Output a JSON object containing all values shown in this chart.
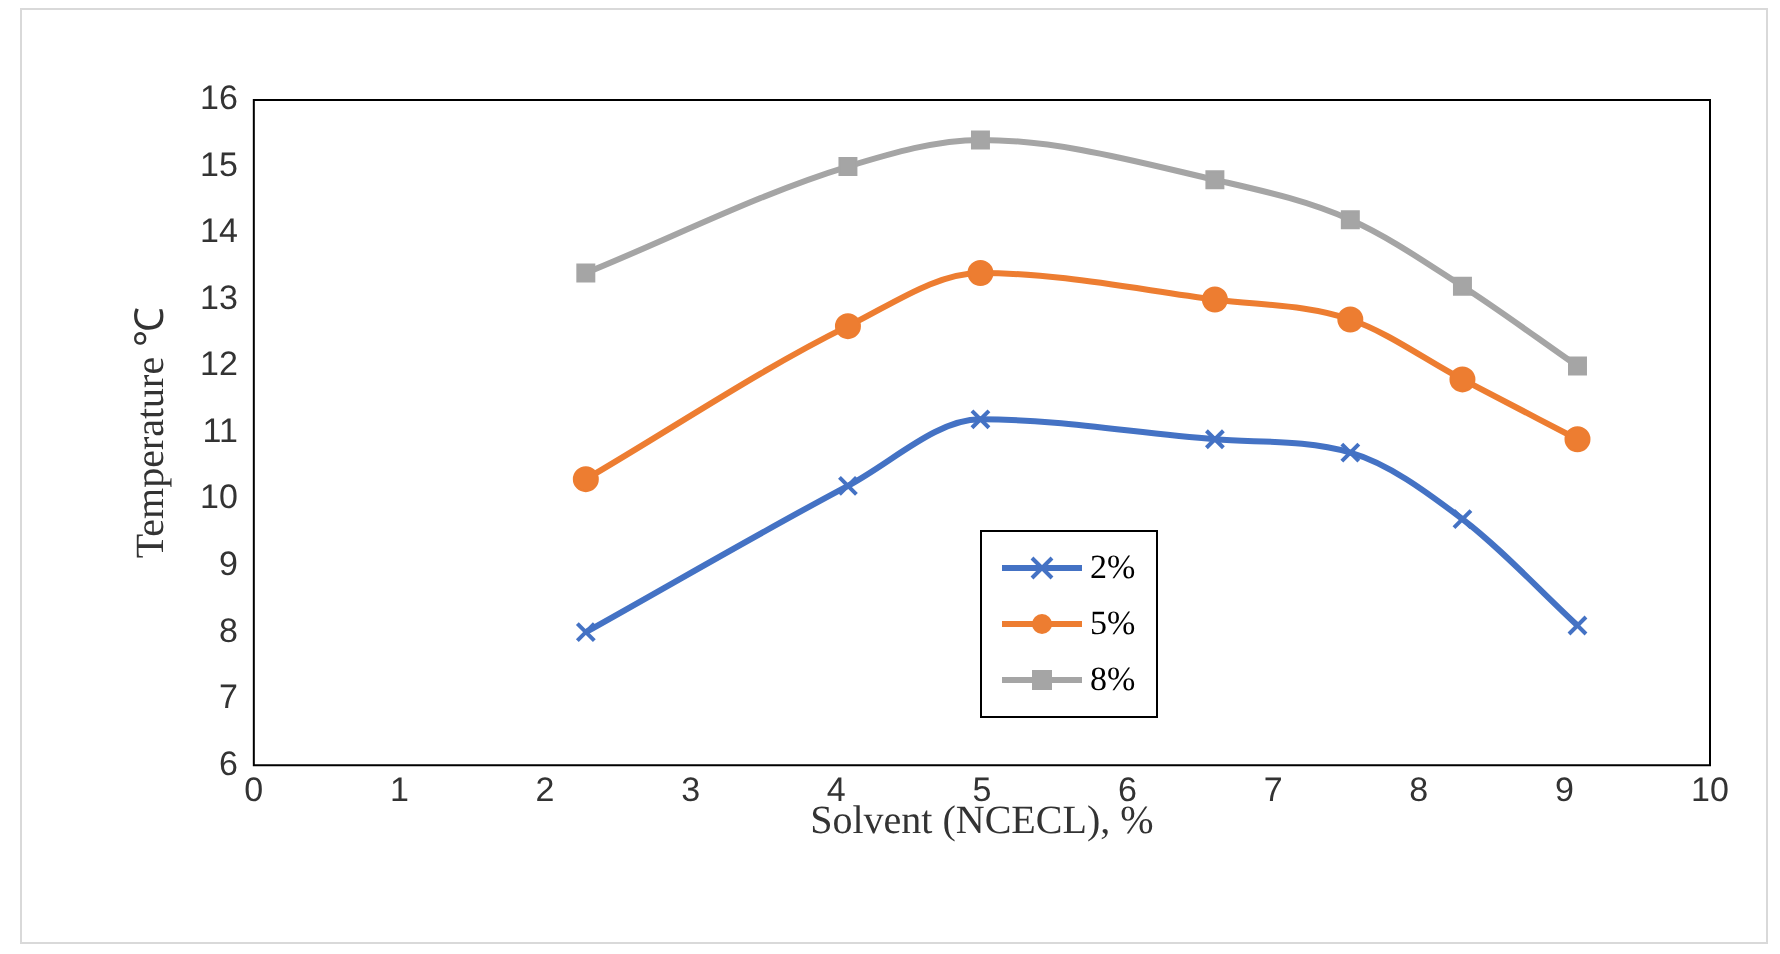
{
  "chart_data": {
    "type": "line",
    "xlabel": "Solvent (NCECL), %",
    "ylabel": "Temperature ℃",
    "xlim": [
      0,
      10
    ],
    "xticks": [
      0,
      1,
      2,
      3,
      4,
      5,
      6,
      7,
      8,
      9,
      10
    ],
    "ylim": [
      6,
      16
    ],
    "yticks": [
      6,
      7,
      8,
      9,
      10,
      11,
      12,
      13,
      14,
      15,
      16
    ],
    "grid": false,
    "legend": "bottom",
    "series": [
      {
        "name": "2%",
        "color": "#4472c4",
        "marker": "cross",
        "x": [
          2.28,
          4.08,
          4.99,
          6.6,
          7.53,
          8.3,
          9.09
        ],
        "values": [
          8.0,
          10.2,
          11.2,
          10.9,
          10.7,
          9.7,
          8.1
        ]
      },
      {
        "name": "5%",
        "color": "#ed7d31",
        "marker": "circle",
        "x": [
          2.28,
          4.08,
          4.99,
          6.6,
          7.53,
          8.3,
          9.09
        ],
        "values": [
          10.3,
          12.6,
          13.4,
          13.0,
          12.7,
          11.8,
          10.9
        ]
      },
      {
        "name": "8%",
        "color": "#a5a5a5",
        "marker": "square",
        "x": [
          2.28,
          4.08,
          4.99,
          6.6,
          7.53,
          8.3,
          9.09
        ],
        "values": [
          13.4,
          15.0,
          15.4,
          14.8,
          14.2,
          13.2,
          12.0
        ]
      }
    ]
  }
}
